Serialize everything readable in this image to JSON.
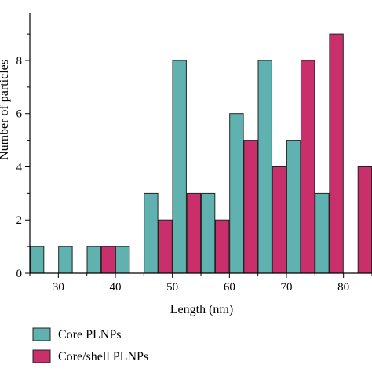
{
  "chart_data": {
    "type": "bar",
    "xlabel": "Length (nm)",
    "ylabel": "Number of particles",
    "xlim": [
      25,
      85
    ],
    "ylim": [
      0,
      9.8
    ],
    "x_ticks": [
      30,
      40,
      50,
      60,
      70,
      80
    ],
    "y_ticks": [
      0,
      2,
      4,
      6,
      8
    ],
    "bin_width": 5,
    "bin_centers": [
      27.5,
      32.5,
      37.5,
      42.5,
      47.5,
      52.5,
      57.5,
      62.5,
      67.5,
      72.5,
      77.5,
      82.5
    ],
    "legend_position": "bottom-left",
    "series": [
      {
        "name": "Core PLNPs",
        "color": "#5fb2af",
        "values": [
          1,
          1,
          1,
          1,
          3,
          8,
          3,
          6,
          8,
          5,
          3,
          0
        ]
      },
      {
        "name": "Core/shell PLNPs",
        "color": "#c82f6b",
        "values": [
          0,
          0,
          1,
          0,
          2,
          3,
          2,
          5,
          4,
          8,
          9,
          4
        ]
      }
    ]
  }
}
